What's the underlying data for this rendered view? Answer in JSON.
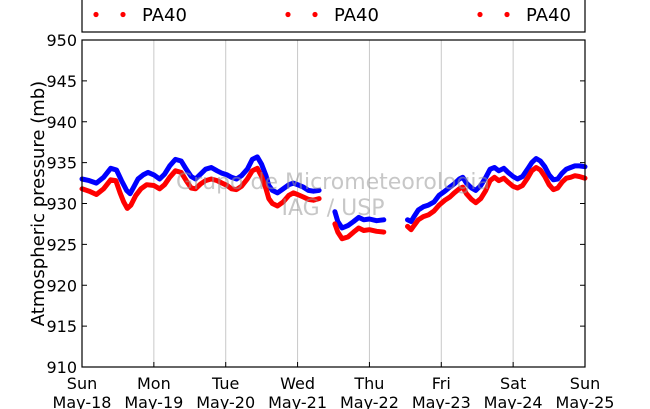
{
  "chart_data": {
    "type": "line",
    "ylabel": "Atmospheric pressure (mb)",
    "ylim": [
      910,
      950
    ],
    "yticks": [
      910,
      915,
      920,
      925,
      930,
      935,
      940,
      945,
      950
    ],
    "xlim": [
      0,
      7
    ],
    "xticks": [
      {
        "x": 0,
        "day": "Sun",
        "date": "May-18"
      },
      {
        "x": 1,
        "day": "Mon",
        "date": "May-19"
      },
      {
        "x": 2,
        "day": "Tue",
        "date": "May-20"
      },
      {
        "x": 3,
        "day": "Wed",
        "date": "May-21"
      },
      {
        "x": 4,
        "day": "Thu",
        "date": "May-22"
      },
      {
        "x": 5,
        "day": "Fri",
        "date": "May-23"
      },
      {
        "x": 6,
        "day": "Sat",
        "date": "May-24"
      },
      {
        "x": 7,
        "day": "Sun",
        "date": "May-25"
      }
    ],
    "grid": "vertical",
    "legend": {
      "placement": "top",
      "entries": [
        "PA40",
        "PA40",
        "PA40"
      ]
    },
    "watermark": [
      "Grupo de Micrometeorologia",
      "IAG / USP"
    ],
    "series": [
      {
        "name": "PA40",
        "color": "#0000ff",
        "segments": [
          [
            [
              0.0,
              933.0
            ],
            [
              0.1,
              932.8
            ],
            [
              0.2,
              932.5
            ],
            [
              0.3,
              933.2
            ],
            [
              0.4,
              934.3
            ],
            [
              0.48,
              934.1
            ],
            [
              0.55,
              932.8
            ],
            [
              0.62,
              931.6
            ],
            [
              0.67,
              931.2
            ],
            [
              0.72,
              932.0
            ],
            [
              0.78,
              933.0
            ],
            [
              0.85,
              933.5
            ],
            [
              0.92,
              933.8
            ],
            [
              1.0,
              933.5
            ],
            [
              1.08,
              933.0
            ],
            [
              1.15,
              933.6
            ],
            [
              1.22,
              934.6
            ],
            [
              1.3,
              935.4
            ],
            [
              1.38,
              935.2
            ],
            [
              1.45,
              934.2
            ],
            [
              1.52,
              933.3
            ],
            [
              1.58,
              933.0
            ],
            [
              1.65,
              933.6
            ],
            [
              1.72,
              934.2
            ],
            [
              1.8,
              934.4
            ],
            [
              1.88,
              934.0
            ],
            [
              1.95,
              933.7
            ],
            [
              2.02,
              933.5
            ],
            [
              2.08,
              933.2
            ],
            [
              2.15,
              933.0
            ],
            [
              2.22,
              933.4
            ],
            [
              2.3,
              934.2
            ],
            [
              2.37,
              935.4
            ],
            [
              2.44,
              935.7
            ],
            [
              2.5,
              934.8
            ],
            [
              2.56,
              933.4
            ],
            [
              2.6,
              932.2
            ],
            [
              2.65,
              931.6
            ],
            [
              2.72,
              931.3
            ],
            [
              2.8,
              931.8
            ],
            [
              2.88,
              932.3
            ],
            [
              2.94,
              932.5
            ],
            [
              3.0,
              932.3
            ],
            [
              3.08,
              932.0
            ],
            [
              3.15,
              931.6
            ],
            [
              3.22,
              931.5
            ],
            [
              3.3,
              931.6
            ]
          ],
          [
            [
              3.52,
              929.0
            ],
            [
              3.56,
              927.8
            ],
            [
              3.62,
              927.0
            ],
            [
              3.7,
              927.3
            ],
            [
              3.78,
              927.8
            ],
            [
              3.85,
              928.3
            ],
            [
              3.92,
              928.0
            ],
            [
              4.0,
              928.1
            ],
            [
              4.1,
              927.9
            ],
            [
              4.2,
              928.0
            ]
          ],
          [
            [
              4.53,
              928.0
            ],
            [
              4.58,
              927.8
            ],
            [
              4.62,
              928.4
            ],
            [
              4.68,
              929.2
            ],
            [
              4.75,
              929.6
            ],
            [
              4.82,
              929.8
            ],
            [
              4.9,
              930.2
            ],
            [
              4.97,
              931.0
            ],
            [
              5.05,
              931.5
            ],
            [
              5.12,
              932.0
            ],
            [
              5.18,
              932.4
            ],
            [
              5.25,
              933.0
            ],
            [
              5.3,
              933.2
            ],
            [
              5.35,
              932.5
            ],
            [
              5.42,
              931.9
            ],
            [
              5.48,
              931.6
            ],
            [
              5.55,
              932.2
            ],
            [
              5.62,
              933.2
            ],
            [
              5.68,
              934.2
            ],
            [
              5.74,
              934.4
            ],
            [
              5.8,
              934.0
            ],
            [
              5.87,
              934.3
            ],
            [
              5.93,
              933.8
            ],
            [
              6.0,
              933.3
            ],
            [
              6.06,
              933.0
            ],
            [
              6.13,
              933.3
            ],
            [
              6.2,
              934.2
            ],
            [
              6.26,
              935.0
            ],
            [
              6.32,
              935.5
            ],
            [
              6.38,
              935.2
            ],
            [
              6.44,
              934.5
            ],
            [
              6.5,
              933.5
            ],
            [
              6.56,
              932.9
            ],
            [
              6.62,
              933.0
            ],
            [
              6.68,
              933.7
            ],
            [
              6.74,
              934.2
            ],
            [
              6.8,
              934.4
            ],
            [
              6.86,
              934.6
            ],
            [
              6.92,
              934.6
            ],
            [
              7.0,
              934.5
            ]
          ]
        ]
      },
      {
        "name": "PA40",
        "color": "#ff0000",
        "segments": [
          [
            [
              0.0,
              931.8
            ],
            [
              0.1,
              931.5
            ],
            [
              0.2,
              931.1
            ],
            [
              0.3,
              931.8
            ],
            [
              0.4,
              932.9
            ],
            [
              0.47,
              932.8
            ],
            [
              0.53,
              931.3
            ],
            [
              0.58,
              930.2
            ],
            [
              0.63,
              929.4
            ],
            [
              0.68,
              929.8
            ],
            [
              0.75,
              931.0
            ],
            [
              0.82,
              931.8
            ],
            [
              0.9,
              932.3
            ],
            [
              1.0,
              932.2
            ],
            [
              1.08,
              931.8
            ],
            [
              1.15,
              932.3
            ],
            [
              1.22,
              933.2
            ],
            [
              1.3,
              934.0
            ],
            [
              1.38,
              933.8
            ],
            [
              1.45,
              932.8
            ],
            [
              1.52,
              931.9
            ],
            [
              1.58,
              931.8
            ],
            [
              1.65,
              932.4
            ],
            [
              1.72,
              932.8
            ],
            [
              1.8,
              933.0
            ],
            [
              1.88,
              932.8
            ],
            [
              1.95,
              932.5
            ],
            [
              2.02,
              932.2
            ],
            [
              2.08,
              931.8
            ],
            [
              2.15,
              931.7
            ],
            [
              2.22,
              932.1
            ],
            [
              2.3,
              933.0
            ],
            [
              2.37,
              934.0
            ],
            [
              2.44,
              934.3
            ],
            [
              2.5,
              933.3
            ],
            [
              2.56,
              931.8
            ],
            [
              2.6,
              930.6
            ],
            [
              2.65,
              930.0
            ],
            [
              2.72,
              929.7
            ],
            [
              2.8,
              930.2
            ],
            [
              2.88,
              931.0
            ],
            [
              2.94,
              931.3
            ],
            [
              3.0,
              931.1
            ],
            [
              3.08,
              930.8
            ],
            [
              3.15,
              930.5
            ],
            [
              3.22,
              930.4
            ],
            [
              3.3,
              930.6
            ]
          ],
          [
            [
              3.52,
              927.5
            ],
            [
              3.56,
              926.5
            ],
            [
              3.62,
              925.7
            ],
            [
              3.7,
              925.9
            ],
            [
              3.78,
              926.5
            ],
            [
              3.85,
              927.0
            ],
            [
              3.92,
              926.7
            ],
            [
              4.0,
              926.8
            ],
            [
              4.1,
              926.6
            ],
            [
              4.2,
              926.5
            ]
          ],
          [
            [
              4.53,
              927.2
            ],
            [
              4.58,
              926.8
            ],
            [
              4.62,
              927.3
            ],
            [
              4.68,
              928.0
            ],
            [
              4.75,
              928.4
            ],
            [
              4.82,
              928.6
            ],
            [
              4.9,
              929.1
            ],
            [
              4.97,
              929.8
            ],
            [
              5.05,
              930.4
            ],
            [
              5.12,
              930.8
            ],
            [
              5.18,
              931.3
            ],
            [
              5.25,
              931.8
            ],
            [
              5.3,
              932.0
            ],
            [
              5.35,
              931.2
            ],
            [
              5.42,
              930.5
            ],
            [
              5.48,
              930.1
            ],
            [
              5.55,
              930.6
            ],
            [
              5.62,
              931.6
            ],
            [
              5.68,
              932.8
            ],
            [
              5.74,
              933.2
            ],
            [
              5.8,
              932.8
            ],
            [
              5.87,
              933.1
            ],
            [
              5.93,
              932.6
            ],
            [
              6.0,
              932.1
            ],
            [
              6.06,
              931.9
            ],
            [
              6.13,
              932.2
            ],
            [
              6.2,
              933.1
            ],
            [
              6.26,
              934.0
            ],
            [
              6.32,
              934.4
            ],
            [
              6.38,
              934.1
            ],
            [
              6.44,
              933.3
            ],
            [
              6.5,
              932.3
            ],
            [
              6.56,
              931.7
            ],
            [
              6.62,
              931.9
            ],
            [
              6.68,
              932.6
            ],
            [
              6.74,
              933.1
            ],
            [
              6.8,
              933.2
            ],
            [
              6.86,
              933.4
            ],
            [
              6.92,
              933.3
            ],
            [
              7.0,
              933.1
            ]
          ]
        ]
      }
    ]
  }
}
